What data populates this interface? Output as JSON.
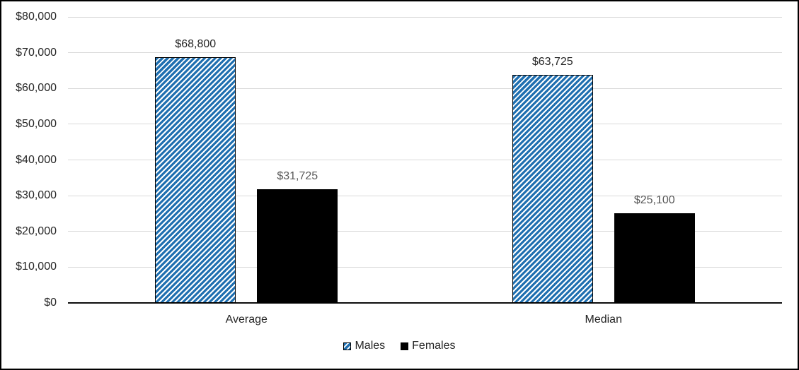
{
  "chart_data": {
    "type": "bar",
    "title": "",
    "xlabel": "",
    "ylabel": "",
    "categories": [
      "Average",
      "Median"
    ],
    "series": [
      {
        "name": "Males",
        "values": [
          68800,
          63725
        ],
        "data_labels": [
          "$68,800",
          "$63,725"
        ],
        "fill": "hatched",
        "hatch_color": "#1f6fb0",
        "hatch_background": "#ffffff",
        "border_color": "#000000",
        "label_color": "#262626"
      },
      {
        "name": "Females",
        "values": [
          31725,
          25100
        ],
        "data_labels": [
          "$31,725",
          "$25,100"
        ],
        "fill": "solid",
        "color": "#000000",
        "border_color": "#000000",
        "label_color": "#595959"
      }
    ],
    "ylim": [
      0,
      80000
    ],
    "yticks": [
      0,
      10000,
      20000,
      30000,
      40000,
      50000,
      60000,
      70000,
      80000
    ],
    "ytick_labels": [
      "$0",
      "$10,000",
      "$20,000",
      "$30,000",
      "$40,000",
      "$50,000",
      "$60,000",
      "$70,000",
      "$80,000"
    ],
    "grid": true,
    "gridline_color": "#d9d9d9",
    "axis_line_color": "#0d0d0d",
    "tick_label_color": "#262626",
    "legend_position": "bottom"
  }
}
